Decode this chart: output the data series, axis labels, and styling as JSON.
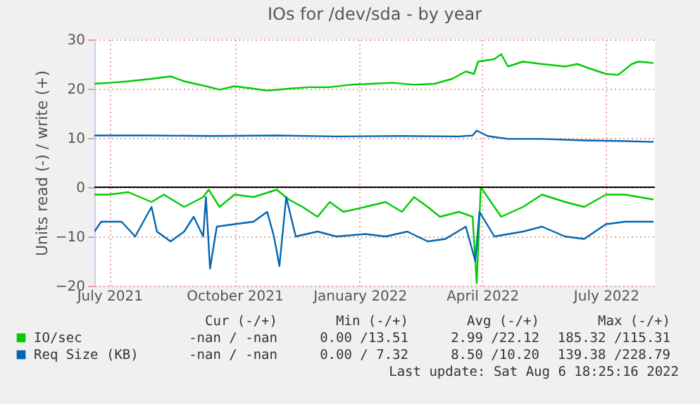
{
  "chart_data": {
    "type": "line",
    "title": "IOs for /dev/sda - by year",
    "ylabel": "Units read (-) / write (+)",
    "xlim": [
      "2021-06-20",
      "2022-08-06"
    ],
    "xticks": [
      {
        "value": "2021-07-01",
        "label": "July 2021"
      },
      {
        "value": "2021-10-01",
        "label": "October 2021"
      },
      {
        "value": "2022-01-01",
        "label": "January 2022"
      },
      {
        "value": "2022-04-01",
        "label": "April 2022"
      },
      {
        "value": "2022-07-01",
        "label": "July 2022"
      }
    ],
    "ylim": [
      -20,
      30
    ],
    "yticks": [
      -20,
      -10,
      0,
      10,
      20,
      30
    ],
    "grid": true,
    "legend": "bottom",
    "line_style": "solid",
    "marker": "none",
    "ref_lines": [
      {
        "axis": "y",
        "value": 0,
        "color": "#000000"
      }
    ],
    "series": [
      {
        "name": "IO/sec",
        "color": "#00cc00",
        "x": [
          "2021-06-20",
          "2021-07-01",
          "2021-07-15",
          "2021-08-01",
          "2021-08-15",
          "2021-08-25",
          "2021-09-10",
          "2021-09-20",
          "2021-10-01",
          "2021-10-15",
          "2021-10-25",
          "2021-11-10",
          "2021-11-25",
          "2021-12-10",
          "2021-12-25",
          "2022-01-10",
          "2022-01-25",
          "2022-02-10",
          "2022-02-25",
          "2022-03-10",
          "2022-03-20",
          "2022-03-26",
          "2022-03-29",
          "2022-04-10",
          "2022-04-15",
          "2022-04-20",
          "2022-05-01",
          "2022-05-15",
          "2022-06-01",
          "2022-06-10",
          "2022-06-20",
          "2022-07-01",
          "2022-07-10",
          "2022-07-20",
          "2022-07-25",
          "2022-08-05"
        ],
        "values": [
          21,
          21.2,
          21.5,
          22,
          22.5,
          21.5,
          20.5,
          19.8,
          20.5,
          20,
          19.6,
          20,
          20.3,
          20.3,
          20.8,
          21,
          21.2,
          20.8,
          21,
          22,
          23.5,
          23,
          25.5,
          26,
          27,
          24.5,
          25.5,
          25,
          24.5,
          25,
          24,
          23,
          22.8,
          25,
          25.5,
          25.2
        ]
      },
      {
        "color": "#00cc00",
        "x": [
          "2021-06-20",
          "2021-07-01",
          "2021-07-15",
          "2021-08-01",
          "2021-08-10",
          "2021-08-25",
          "2021-09-08",
          "2021-09-12",
          "2021-09-20",
          "2021-10-01",
          "2021-10-15",
          "2021-11-01",
          "2021-11-10",
          "2021-11-20",
          "2021-12-01",
          "2021-12-10",
          "2021-12-20",
          "2022-01-05",
          "2022-01-20",
          "2022-02-01",
          "2022-02-10",
          "2022-02-20",
          "2022-03-01",
          "2022-03-15",
          "2022-03-25",
          "2022-03-28",
          "2022-03-31",
          "2022-04-15",
          "2022-05-01",
          "2022-05-15",
          "2022-06-01",
          "2022-06-15",
          "2022-07-01",
          "2022-07-15",
          "2022-08-05"
        ],
        "values": [
          -1.5,
          -1.5,
          -1,
          -3,
          -1.5,
          -4,
          -2,
          -0.5,
          -4,
          -1.5,
          -2,
          -0.5,
          -2.5,
          -4,
          -6,
          -3,
          -5,
          -4,
          -3,
          -5,
          -2,
          -4,
          -6,
          -5,
          -6,
          -19.5,
          0,
          -6,
          -4,
          -1.5,
          -3,
          -4,
          -1.5,
          -1.5,
          -2.5
        ]
      },
      {
        "name": "Req Size (KB)",
        "color": "#0066b3",
        "x": [
          "2021-06-20",
          "2021-08-01",
          "2021-09-15",
          "2021-11-01",
          "2021-12-15",
          "2022-02-01",
          "2022-03-15",
          "2022-03-25",
          "2022-03-28",
          "2022-04-05",
          "2022-04-20",
          "2022-05-15",
          "2022-06-15",
          "2022-07-10",
          "2022-08-05"
        ],
        "values": [
          10.5,
          10.5,
          10.4,
          10.5,
          10.3,
          10.4,
          10.3,
          10.5,
          11.5,
          10.4,
          9.8,
          9.8,
          9.5,
          9.4,
          9.2
        ]
      },
      {
        "color": "#0066b3",
        "x": [
          "2021-06-20",
          "2021-06-25",
          "2021-07-10",
          "2021-07-20",
          "2021-08-01",
          "2021-08-05",
          "2021-08-15",
          "2021-08-25",
          "2021-09-01",
          "2021-09-08",
          "2021-09-10",
          "2021-09-13",
          "2021-09-18",
          "2021-10-01",
          "2021-10-15",
          "2021-10-25",
          "2021-10-30",
          "2021-11-03",
          "2021-11-08",
          "2021-11-15",
          "2021-12-01",
          "2021-12-15",
          "2022-01-05",
          "2022-01-20",
          "2022-02-05",
          "2022-02-20",
          "2022-03-05",
          "2022-03-20",
          "2022-03-27",
          "2022-03-30",
          "2022-04-10",
          "2022-05-01",
          "2022-05-15",
          "2022-06-01",
          "2022-06-15",
          "2022-07-01",
          "2022-07-15",
          "2022-08-05"
        ],
        "values": [
          -9,
          -7,
          -7,
          -10,
          -4,
          -9,
          -11,
          -9,
          -6,
          -10,
          -2,
          -16.5,
          -8,
          -7.5,
          -7,
          -5,
          -10,
          -16,
          -2,
          -10,
          -9,
          -10,
          -9.5,
          -10,
          -9,
          -11,
          -10.5,
          -8,
          -15,
          -5,
          -10,
          -9,
          -8,
          -10,
          -10.5,
          -7.5,
          -7,
          -7
        ]
      }
    ],
    "annotations": [
      "Cur (-/+)",
      "Min (-/+)",
      "Avg (-/+)",
      "Max (-/+)",
      "-nan / -nan",
      "0.00 /13.51",
      "2.99 /22.12",
      "185.32 /115.31",
      "-nan / -nan",
      "0.00 / 7.32",
      "8.50 /10.20",
      "139.38 /228.79",
      "Last update: Sat Aug  6 18:25:16 2022"
    ]
  }
}
